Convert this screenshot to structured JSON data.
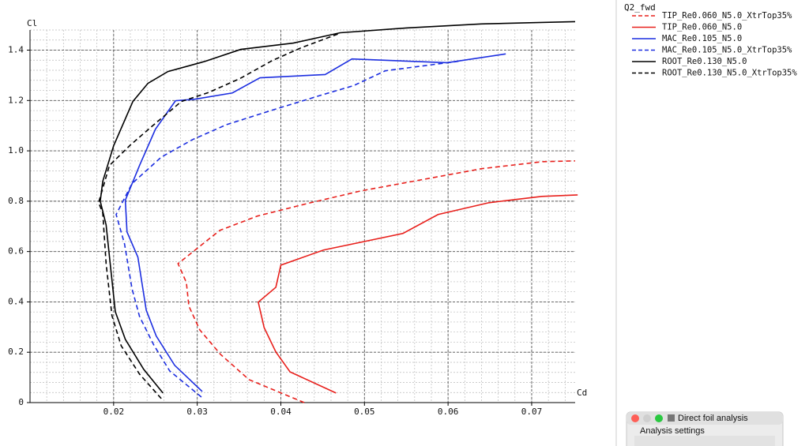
{
  "chart_data": {
    "type": "line",
    "x_label": "Cd",
    "y_label": "Cl",
    "legend_title": "Q2_fwd",
    "legend": "right",
    "grid": true,
    "xlim": [
      0.01,
      0.0752
    ],
    "ylim": [
      0,
      1.48
    ],
    "xticks": [
      0.02,
      0.03,
      0.04,
      0.05,
      0.06,
      0.07
    ],
    "yticks": [
      0,
      0.2,
      0.4,
      0.6,
      0.8,
      {
        "value": 1,
        "label": "1.0"
      },
      1.2,
      1.4
    ],
    "series": [
      {
        "name": "TIP_Re0.060_N5.0_XtrTop35%",
        "color": "#e8201c",
        "dashed": true,
        "x": [
          0.0428,
          0.0362,
          0.0328,
          0.0303,
          0.029,
          0.0287,
          0.0277,
          0.0327,
          0.0372,
          0.0432,
          0.0496,
          0.0568,
          0.064,
          0.0713,
          0.0752
        ],
        "values": [
          0,
          0.091,
          0.191,
          0.289,
          0.383,
          0.477,
          0.552,
          0.684,
          0.741,
          0.791,
          0.841,
          0.885,
          0.929,
          0.957,
          0.96
        ]
      },
      {
        "name": "TIP_Re0.060_N5.0",
        "color": "#e8201c",
        "dashed": false,
        "x": [
          0.0466,
          0.0411,
          0.0394,
          0.038,
          0.0373,
          0.0394,
          0.04,
          0.0451,
          0.0546,
          0.0588,
          0.0649,
          0.0712,
          0.0755
        ],
        "values": [
          0.038,
          0.122,
          0.201,
          0.298,
          0.399,
          0.458,
          0.546,
          0.606,
          0.672,
          0.747,
          0.794,
          0.819,
          0.825
        ]
      },
      {
        "name": "MAC_Re0.105_N5.0",
        "color": "#1c2ee0",
        "dashed": false,
        "x": [
          0.0306,
          0.0273,
          0.0251,
          0.0239,
          0.0229,
          0.0216,
          0.0214,
          0.0231,
          0.025,
          0.0274,
          0.0297,
          0.0342,
          0.0375,
          0.0453,
          0.0485,
          0.0599,
          0.0669
        ],
        "values": [
          0.044,
          0.148,
          0.264,
          0.367,
          0.578,
          0.678,
          0.804,
          0.942,
          1.086,
          1.199,
          1.205,
          1.23,
          1.29,
          1.303,
          1.365,
          1.35,
          1.385
        ]
      },
      {
        "name": "MAC_Re0.105_N5.0_XtrTop35%",
        "color": "#1c2ee0",
        "dashed": true,
        "x": [
          0.0305,
          0.0267,
          0.0248,
          0.0231,
          0.0222,
          0.0213,
          0.0203,
          0.0222,
          0.0257,
          0.0294,
          0.0335,
          0.0389,
          0.0451,
          0.0487,
          0.0525,
          0.0613
        ],
        "values": [
          0.022,
          0.126,
          0.229,
          0.342,
          0.452,
          0.631,
          0.747,
          0.87,
          0.975,
          1.044,
          1.104,
          1.161,
          1.224,
          1.259,
          1.318,
          1.356
        ]
      },
      {
        "name": "ROOT_Re0.130_N5.0",
        "color": "#000000",
        "dashed": false,
        "x": [
          0.0259,
          0.0236,
          0.0214,
          0.0202,
          0.0196,
          0.0191,
          0.0184,
          0.0187,
          0.02,
          0.0223,
          0.0241,
          0.0265,
          0.031,
          0.0352,
          0.0415,
          0.0471,
          0.055,
          0.064,
          0.0712,
          0.0752
        ],
        "values": [
          0.038,
          0.132,
          0.251,
          0.361,
          0.549,
          0.706,
          0.8,
          0.879,
          1.02,
          1.196,
          1.268,
          1.315,
          1.356,
          1.403,
          1.428,
          1.469,
          1.488,
          1.504,
          1.51,
          1.513
        ]
      },
      {
        "name": "ROOT_Re0.130_N5.0_XtrTop35%",
        "color": "#000000",
        "dashed": true,
        "x": [
          0.0257,
          0.0231,
          0.0209,
          0.0198,
          0.0191,
          0.0187,
          0.0182,
          0.0195,
          0.022,
          0.0245,
          0.0281,
          0.0313,
          0.0351,
          0.039,
          0.0424,
          0.0469
        ],
        "values": [
          0.016,
          0.113,
          0.226,
          0.345,
          0.552,
          0.753,
          0.794,
          0.942,
          1.023,
          1.095,
          1.196,
          1.231,
          1.287,
          1.359,
          1.409,
          1.465
        ]
      }
    ]
  },
  "window": {
    "title": "Direct foil analysis",
    "section": "Analysis settings"
  }
}
